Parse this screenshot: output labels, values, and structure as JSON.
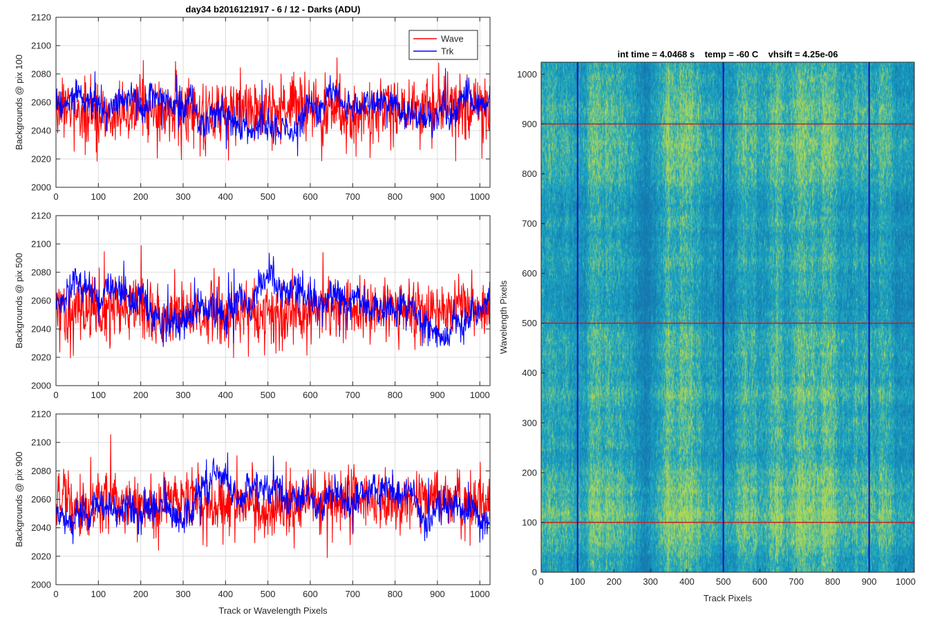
{
  "figure_title": "day34 b2016121917 - 6 / 12 - Darks (ADU)",
  "colors": {
    "wave": "#ff0000",
    "trk": "#0000ff",
    "grid": "#dcdcdc",
    "axis": "#262626",
    "heatmap_base": "#1aa6c4",
    "heatmap_high": "#b7d66a",
    "heatmap_low": "#1f6fd8",
    "heatmap_column": "#1010c8",
    "heatmap_row": "#c81e1e"
  },
  "legend": {
    "entries": [
      "Wave",
      "Trk"
    ],
    "placement": "top-right"
  },
  "chart_data": [
    {
      "type": "line",
      "title": "day34 b2016121917 - 6 / 12 - Darks (ADU)",
      "ylabel": "Backgrounds @ pix 100",
      "xlabel": "",
      "xlim": [
        0,
        1024
      ],
      "ylim": [
        2000,
        2120
      ],
      "xticks": [
        "0",
        "100",
        "200",
        "300",
        "400",
        "500",
        "600",
        "700",
        "800",
        "900",
        "1000"
      ],
      "yticks": [
        "2000",
        "2020",
        "2040",
        "2060",
        "2080",
        "2100",
        "2120"
      ],
      "grid": true,
      "legend": [
        "Wave",
        "Trk"
      ],
      "series": [
        {
          "name": "Wave",
          "color": "#ff0000",
          "mean": 2053,
          "noise_sd": 13,
          "min": 2018,
          "max": 2102
        },
        {
          "name": "Trk",
          "color": "#0000ff",
          "mean": 2055,
          "noise_sd": 11,
          "min": 2019,
          "max": 2088
        }
      ]
    },
    {
      "type": "line",
      "title": "",
      "ylabel": "Backgrounds @ pix 500",
      "xlabel": "",
      "xlim": [
        0,
        1024
      ],
      "ylim": [
        2000,
        2120
      ],
      "xticks": [
        "0",
        "100",
        "200",
        "300",
        "400",
        "500",
        "600",
        "700",
        "800",
        "900",
        "1000"
      ],
      "yticks": [
        "2000",
        "2020",
        "2040",
        "2060",
        "2080",
        "2100",
        "2120"
      ],
      "grid": true,
      "series": [
        {
          "name": "Wave",
          "color": "#ff0000",
          "mean": 2054,
          "noise_sd": 13,
          "min": 2019,
          "max": 2101
        },
        {
          "name": "Trk",
          "color": "#0000ff",
          "mean": 2060,
          "noise_sd": 12,
          "min": 2027,
          "max": 2104
        }
      ]
    },
    {
      "type": "line",
      "title": "",
      "ylabel": "Backgrounds @ pix 900",
      "xlabel": "Track or Wavelength Pixels",
      "xlim": [
        0,
        1024
      ],
      "ylim": [
        2000,
        2120
      ],
      "xticks": [
        "0",
        "100",
        "200",
        "300",
        "400",
        "500",
        "600",
        "700",
        "800",
        "900",
        "1000"
      ],
      "yticks": [
        "2000",
        "2020",
        "2040",
        "2060",
        "2080",
        "2100",
        "2120"
      ],
      "grid": true,
      "series": [
        {
          "name": "Wave",
          "color": "#ff0000",
          "mean": 2055,
          "noise_sd": 13,
          "min": 2019,
          "max": 2108
        },
        {
          "name": "Trk",
          "color": "#0000ff",
          "mean": 2056,
          "noise_sd": 11,
          "min": 2025,
          "max": 2093
        }
      ]
    },
    {
      "type": "heatmap",
      "title": "int time = 4.0468 s    temp = -60 C    vhsift = 4.25e-06",
      "xlabel": "Track Pixels",
      "ylabel": "Wavelength Pixels",
      "xlim": [
        0,
        1024
      ],
      "ylim": [
        0,
        1024
      ],
      "xticks": [
        "0",
        "100",
        "200",
        "300",
        "400",
        "500",
        "600",
        "700",
        "800",
        "900",
        "1000"
      ],
      "yticks": [
        "0",
        "100",
        "200",
        "300",
        "400",
        "500",
        "600",
        "700",
        "800",
        "900",
        "1000"
      ],
      "grid": false,
      "marked_columns": [
        100,
        500,
        900
      ],
      "marked_rows": [
        100,
        500,
        900
      ]
    }
  ]
}
